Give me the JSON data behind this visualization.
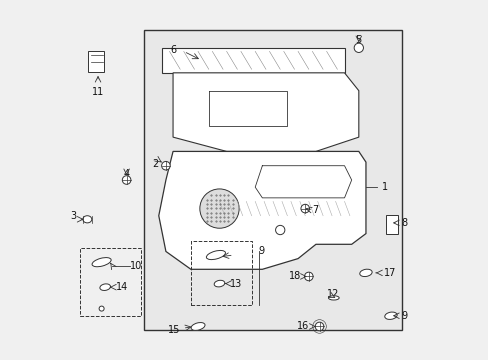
{
  "bg_color": "#f0f0f0",
  "box_bg": "#e8e8e8",
  "line_color": "#333333",
  "text_color": "#111111",
  "font_size": 7
}
